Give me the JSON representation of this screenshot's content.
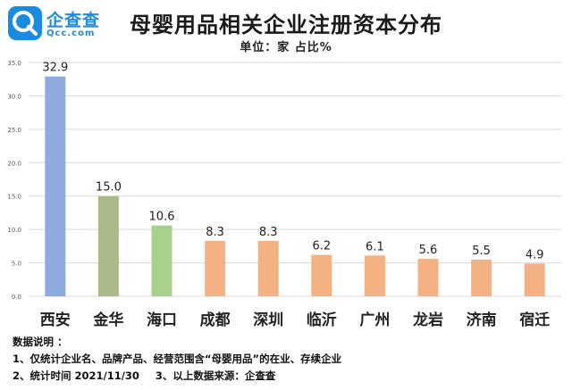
{
  "logo": {
    "name": "企查查",
    "domain": "Qcc.com"
  },
  "chart_data": {
    "type": "bar",
    "title": "母婴用品相关企业注册资本分布",
    "subtitle": "单位：家 占比%",
    "categories": [
      "西安",
      "金华",
      "海口",
      "成都",
      "深圳",
      "临沂",
      "广州",
      "龙岩",
      "济南",
      "宿迁"
    ],
    "values": [
      32.9,
      15.0,
      10.6,
      8.3,
      8.3,
      6.2,
      6.1,
      5.6,
      5.5,
      4.9
    ],
    "value_labels": [
      "32.9",
      "15.0",
      "10.6",
      "8.3",
      "8.3",
      "6.2",
      "6.1",
      "5.6",
      "5.5",
      "4.9"
    ],
    "colors": [
      "#8faadc",
      "#a9b98a",
      "#a9d18e",
      "#f4b183",
      "#f4b183",
      "#f4b183",
      "#f4b183",
      "#f4b183",
      "#f4b183",
      "#f4b183"
    ],
    "ylim": [
      0,
      35
    ],
    "yticks": [
      0,
      5,
      10,
      15,
      20,
      25,
      30,
      35
    ],
    "ytick_labels": [
      "0.0",
      "5.0",
      "10.0",
      "15.0",
      "20.0",
      "25.0",
      "30.0",
      "35.0"
    ],
    "grid": true,
    "xlabel": "",
    "ylabel": ""
  },
  "notes": {
    "heading": "数据说明 ：",
    "line1": "1、仅统计企业名、品牌产品、经营范围含“母婴用品”的在业、存续企业",
    "line2a": "2、统计时间 2021/11/30",
    "line2b": "3、以上数据来源：企查查"
  }
}
